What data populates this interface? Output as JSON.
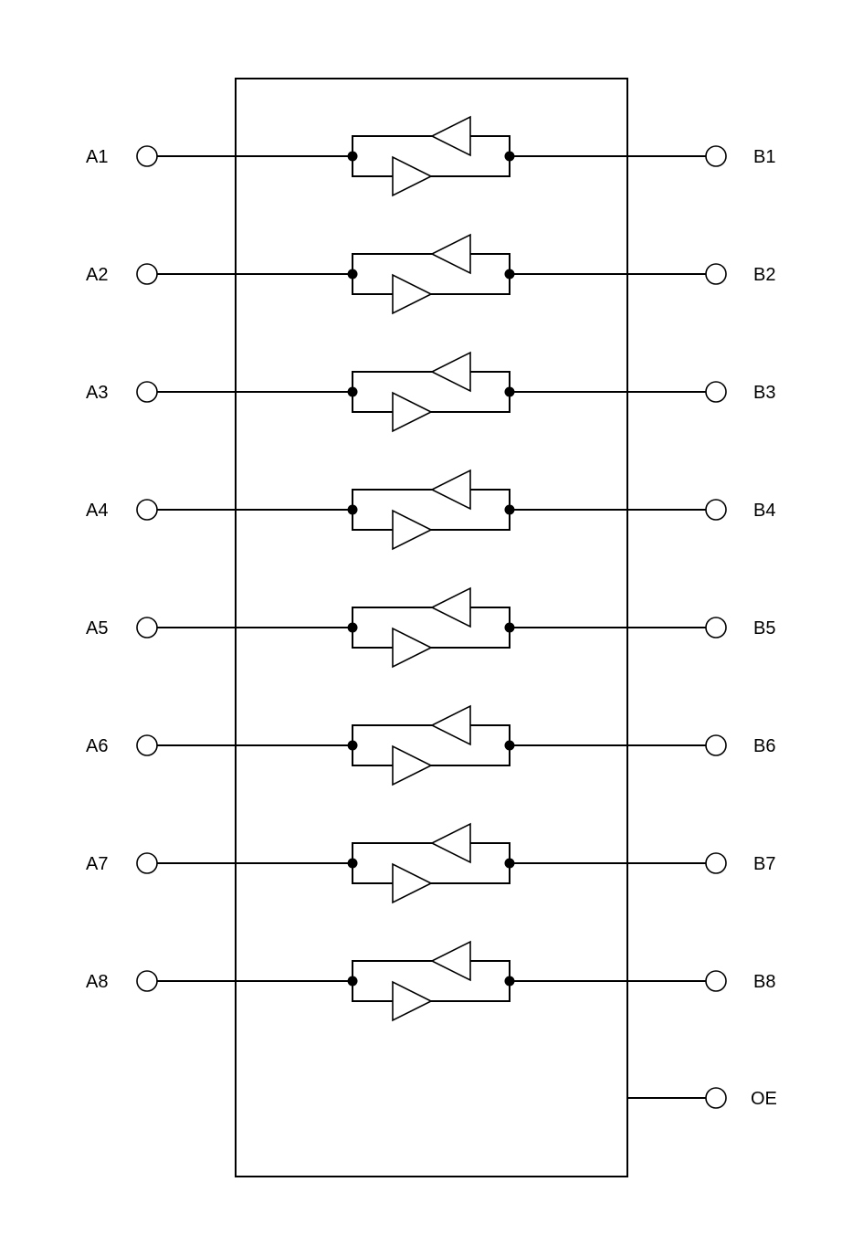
{
  "diagram": {
    "a_labels": [
      "A1",
      "A2",
      "A3",
      "A4",
      "A5",
      "A6",
      "A7",
      "A8"
    ],
    "b_labels": [
      "B1",
      "B2",
      "B3",
      "B4",
      "B5",
      "B6",
      "B7",
      "B8"
    ],
    "control_label": "OE"
  }
}
